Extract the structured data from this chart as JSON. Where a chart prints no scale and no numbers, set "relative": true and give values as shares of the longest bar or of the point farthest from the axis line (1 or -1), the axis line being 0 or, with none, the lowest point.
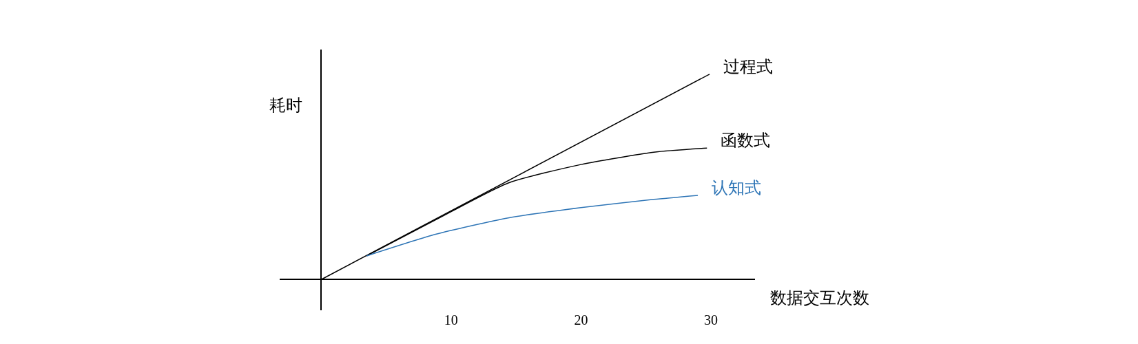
{
  "chart_data": {
    "type": "line",
    "xlabel": "数据交互次数",
    "ylabel": "耗时",
    "relative": true,
    "xlim": [
      -3.2,
      33.4
    ],
    "xticks": [
      10,
      20,
      30
    ],
    "tick_labels": "x",
    "grid": false,
    "legend": false,
    "marker": "none",
    "line_style": "solid",
    "series": [
      {
        "name": "过程式",
        "color": "#000000",
        "x": [
          0,
          29.9
        ],
        "values": [
          0,
          1
        ]
      },
      {
        "name": "函数式",
        "color": "#000000",
        "x": [
          3.5,
          8.8,
          14.4,
          20,
          25.6,
          29.7
        ],
        "values": [
          0.115,
          0.29,
          0.47,
          0.56,
          0.62,
          0.64
        ]
      },
      {
        "name": "认知式",
        "color": "#2e75b6",
        "x": [
          3.5,
          8.8,
          14.4,
          20,
          25.6,
          29
        ],
        "values": [
          0.115,
          0.22,
          0.3,
          0.35,
          0.39,
          0.41
        ]
      }
    ]
  }
}
